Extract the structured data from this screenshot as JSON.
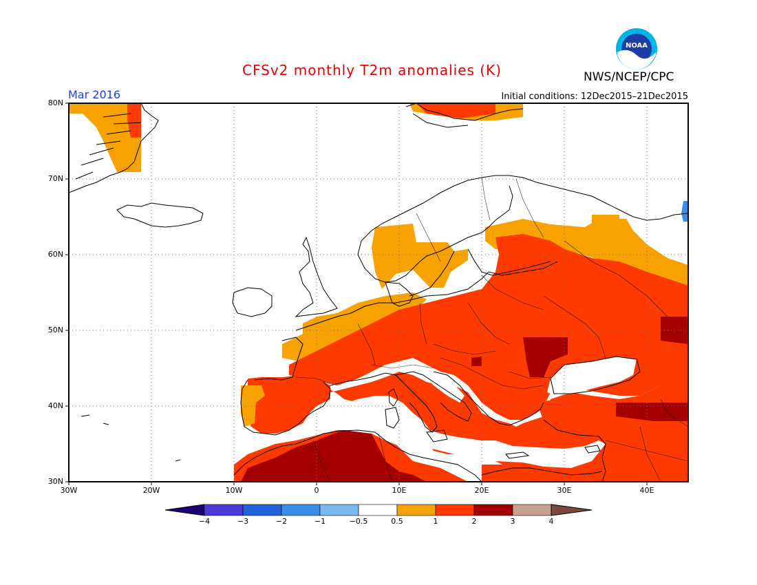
{
  "header": {
    "title": "CFSv2 monthly T2m anomalies (K)",
    "agency": "NWS/NCEP/CPC",
    "month": "Mar 2016",
    "initial_conditions": "Initial conditions: 12Dec2015–21Dec2015",
    "logo_text": "NOAA"
  },
  "map": {
    "lon_range": [
      -30,
      45
    ],
    "lat_range": [
      30,
      80
    ],
    "lat_labels": [
      "80N",
      "70N",
      "60N",
      "50N",
      "40N",
      "30N"
    ],
    "lon_labels": [
      "30W",
      "20W",
      "10W",
      "0",
      "10E",
      "20E",
      "30E",
      "40E"
    ],
    "grid": "dotted"
  },
  "colorbar": {
    "ticks": [
      "−4",
      "−3",
      "−2",
      "−1",
      "−0.5",
      "0.5",
      "1",
      "2",
      "3",
      "4"
    ],
    "colors": [
      "#1e0078",
      "#4a38d8",
      "#1f64d8",
      "#3a8ee8",
      "#7ab8f0",
      "#ffffff",
      "#f7a200",
      "#ff3a00",
      "#a50000",
      "#c8a090",
      "#7a4a3a"
    ]
  },
  "anomaly_classes": {
    "class_1": "#f7a200",
    "class_2": "#ff3a00",
    "class_3": "#a50000",
    "class_neg": "#3a8ee8"
  }
}
